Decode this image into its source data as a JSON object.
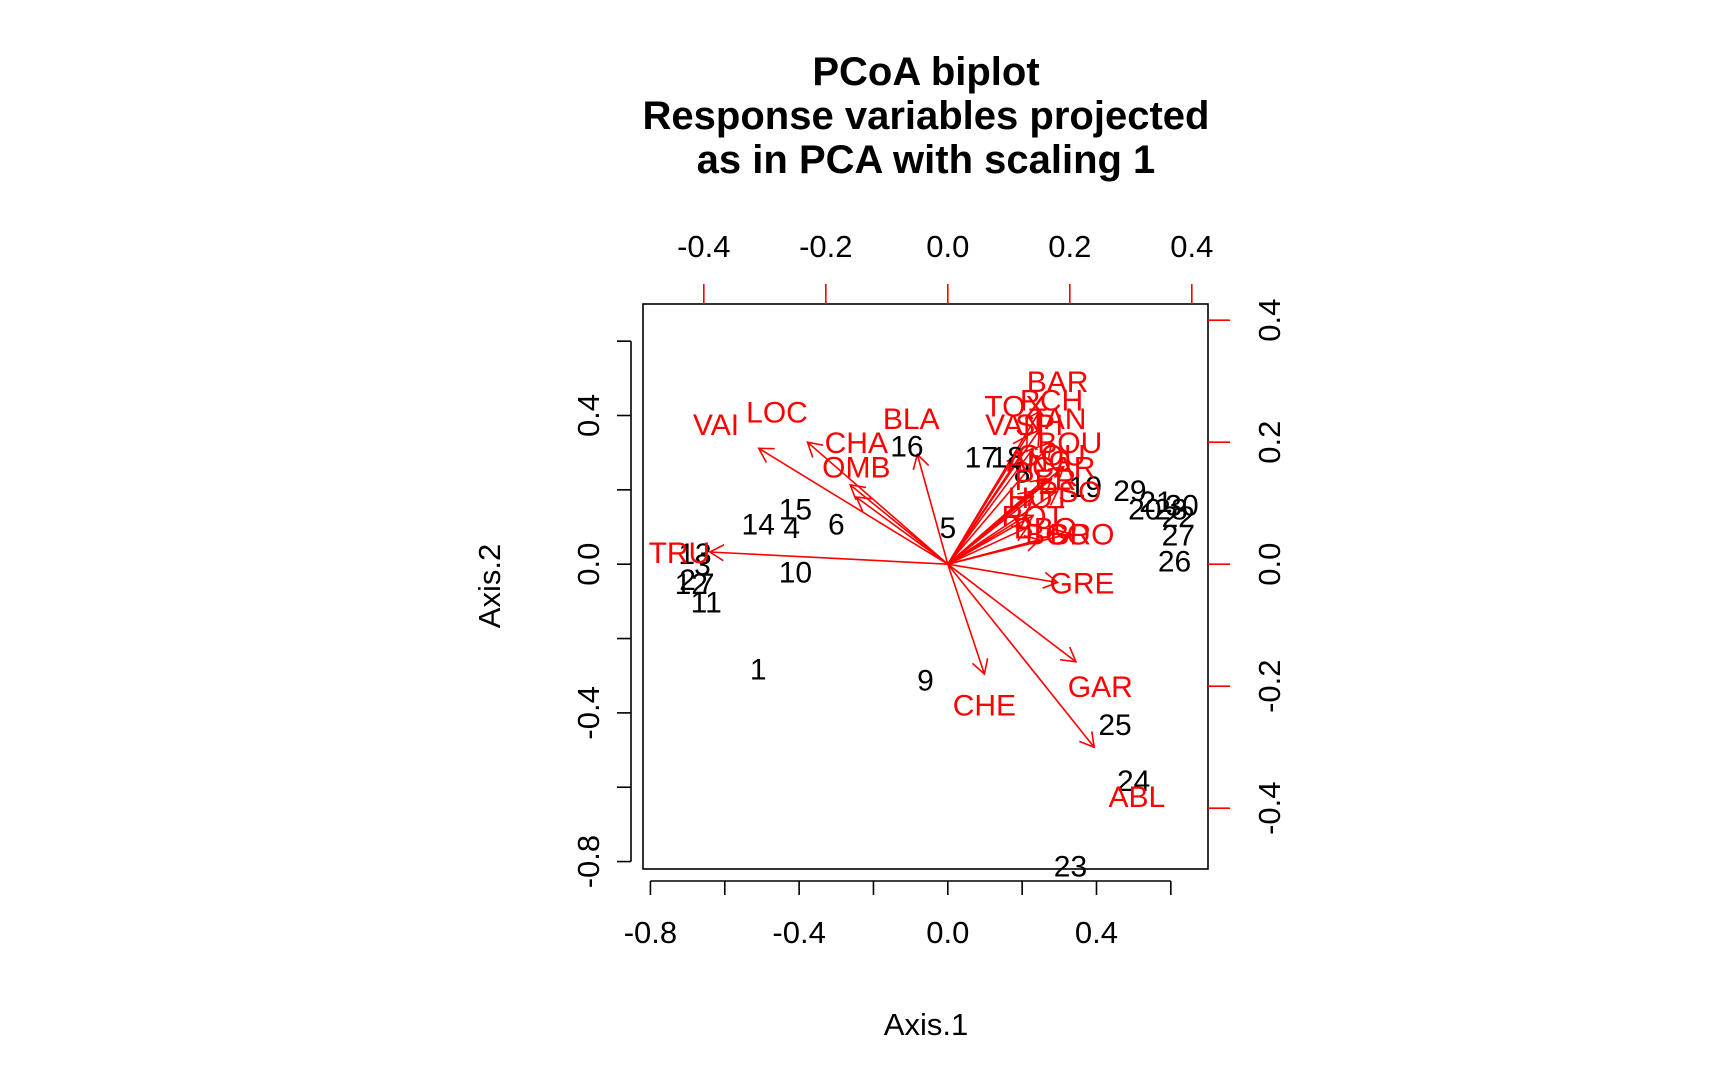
{
  "chart_data": {
    "type": "scatter",
    "title_lines": [
      "PCoA biplot",
      "Response variables projected",
      "as in PCA with scaling 1"
    ],
    "xlabel": "Axis.1",
    "ylabel": "Axis.2",
    "xlim": [
      -0.82,
      0.7
    ],
    "ylim": [
      -0.82,
      0.7
    ],
    "x_ticks": [
      "-0.8",
      "-0.4",
      "0.0",
      "0.4"
    ],
    "x_tick_values": [
      -0.8,
      -0.4,
      0.0,
      0.4
    ],
    "x_minor_ticks": [
      -0.6,
      -0.2,
      0.2,
      0.6
    ],
    "y_ticks": [
      "-0.8",
      "-0.4",
      "0.0",
      "0.4"
    ],
    "y_tick_values": [
      -0.8,
      -0.4,
      0.0,
      0.4
    ],
    "y_minor_ticks": [
      -0.6,
      -0.2,
      0.2,
      0.6
    ],
    "secondary_x_ticks": [
      "-0.4",
      "-0.2",
      "0.0",
      "0.2",
      "0.4"
    ],
    "secondary_x_tick_values": [
      -0.4,
      -0.2,
      0.0,
      0.2,
      0.4
    ],
    "secondary_y_ticks": [
      "-0.4",
      "-0.2",
      "0.0",
      "0.2",
      "0.4"
    ],
    "secondary_y_tick_values": [
      -0.4,
      -0.2,
      0.0,
      0.2,
      0.4
    ],
    "secondary_axis_color": "#ff0000",
    "site_color": "#000000",
    "species_color": "#ff0000",
    "grid": false,
    "sites": [
      {
        "label": "1",
        "x": -0.51,
        "y": -0.28
      },
      {
        "label": "2",
        "x": -0.7,
        "y": -0.04
      },
      {
        "label": "3",
        "x": -0.66,
        "y": 0.0
      },
      {
        "label": "4",
        "x": -0.42,
        "y": 0.1
      },
      {
        "label": "5",
        "x": 0.0,
        "y": 0.1
      },
      {
        "label": "6",
        "x": -0.3,
        "y": 0.11
      },
      {
        "label": "7",
        "x": -0.65,
        "y": -0.05
      },
      {
        "label": "8",
        "x": 0.2,
        "y": 0.25
      },
      {
        "label": "9",
        "x": -0.06,
        "y": -0.31
      },
      {
        "label": "10",
        "x": -0.41,
        "y": -0.02
      },
      {
        "label": "11",
        "x": -0.65,
        "y": -0.1
      },
      {
        "label": "12",
        "x": -0.69,
        "y": -0.05
      },
      {
        "label": "13",
        "x": -0.68,
        "y": 0.03
      },
      {
        "label": "14",
        "x": -0.51,
        "y": 0.11
      },
      {
        "label": "15",
        "x": -0.41,
        "y": 0.15
      },
      {
        "label": "16",
        "x": -0.11,
        "y": 0.32
      },
      {
        "label": "17",
        "x": 0.09,
        "y": 0.29
      },
      {
        "label": "18",
        "x": 0.16,
        "y": 0.29
      },
      {
        "label": "19",
        "x": 0.37,
        "y": 0.21
      },
      {
        "label": "20",
        "x": 0.53,
        "y": 0.15
      },
      {
        "label": "21",
        "x": 0.56,
        "y": 0.17
      },
      {
        "label": "22",
        "x": 0.62,
        "y": 0.13
      },
      {
        "label": "23",
        "x": 0.33,
        "y": -0.81
      },
      {
        "label": "24",
        "x": 0.5,
        "y": -0.58
      },
      {
        "label": "25",
        "x": 0.45,
        "y": -0.43
      },
      {
        "label": "26",
        "x": 0.61,
        "y": 0.01
      },
      {
        "label": "27",
        "x": 0.62,
        "y": 0.08
      },
      {
        "label": "28",
        "x": 0.6,
        "y": 0.15
      },
      {
        "label": "29",
        "x": 0.49,
        "y": 0.2
      },
      {
        "label": "30",
        "x": 0.63,
        "y": 0.16
      }
    ],
    "species": [
      {
        "label": "CHA",
        "x": -0.16,
        "y": 0.13,
        "lx": -0.15,
        "ly": 0.2
      },
      {
        "label": "TRU",
        "x": -0.39,
        "y": 0.02,
        "lx": -0.44,
        "ly": 0.02
      },
      {
        "label": "VAI",
        "x": -0.31,
        "y": 0.19,
        "lx": -0.38,
        "ly": 0.23
      },
      {
        "label": "LOC",
        "x": -0.23,
        "y": 0.2,
        "lx": -0.28,
        "ly": 0.25
      },
      {
        "label": "OMB",
        "x": -0.15,
        "y": 0.11,
        "lx": -0.15,
        "ly": 0.16
      },
      {
        "label": "BLA",
        "x": -0.05,
        "y": 0.18,
        "lx": -0.06,
        "ly": 0.24
      },
      {
        "label": "HOT",
        "x": 0.13,
        "y": 0.08,
        "lx": 0.15,
        "ly": 0.11
      },
      {
        "label": "TOX",
        "x": 0.13,
        "y": 0.21,
        "lx": 0.11,
        "ly": 0.26
      },
      {
        "label": "VAN",
        "x": 0.12,
        "y": 0.18,
        "lx": 0.11,
        "ly": 0.23
      },
      {
        "label": "CHE",
        "x": 0.06,
        "y": -0.18,
        "lx": 0.06,
        "ly": -0.23
      },
      {
        "label": "BAR",
        "x": 0.15,
        "y": 0.25,
        "lx": 0.18,
        "ly": 0.3
      },
      {
        "label": "SPI",
        "x": 0.14,
        "y": 0.19,
        "lx": 0.15,
        "ly": 0.23
      },
      {
        "label": "GOU",
        "x": 0.16,
        "y": 0.14,
        "lx": 0.17,
        "ly": 0.18
      },
      {
        "label": "BRO",
        "x": 0.2,
        "y": 0.05,
        "lx": 0.22,
        "ly": 0.05
      },
      {
        "label": "PER",
        "x": 0.14,
        "y": 0.11,
        "lx": 0.16,
        "ly": 0.14
      },
      {
        "label": "BOU",
        "x": 0.19,
        "y": 0.16,
        "lx": 0.2,
        "ly": 0.2
      },
      {
        "label": "PSO",
        "x": 0.18,
        "y": 0.12,
        "lx": 0.2,
        "ly": 0.12
      },
      {
        "label": "ROT",
        "x": 0.14,
        "y": 0.08,
        "lx": 0.14,
        "ly": 0.08
      },
      {
        "label": "CAR",
        "x": 0.17,
        "y": 0.14,
        "lx": 0.19,
        "ly": 0.16
      },
      {
        "label": "TAN",
        "x": 0.17,
        "y": 0.2,
        "lx": 0.18,
        "ly": 0.24
      },
      {
        "label": "BCO",
        "x": 0.15,
        "y": 0.04,
        "lx": 0.18,
        "ly": 0.05
      },
      {
        "label": "PCH",
        "x": 0.15,
        "y": 0.22,
        "lx": 0.17,
        "ly": 0.27
      },
      {
        "label": "GRE",
        "x": 0.18,
        "y": -0.03,
        "lx": 0.22,
        "ly": -0.03
      },
      {
        "label": "GAR",
        "x": 0.21,
        "y": -0.16,
        "lx": 0.25,
        "ly": -0.2
      },
      {
        "label": "BBO",
        "x": 0.13,
        "y": 0.06,
        "lx": 0.16,
        "ly": 0.06
      },
      {
        "label": "ABL",
        "x": 0.24,
        "y": -0.3,
        "lx": 0.31,
        "ly": -0.38
      },
      {
        "label": "ANG",
        "x": 0.14,
        "y": 0.12,
        "lx": 0.15,
        "ly": 0.17
      }
    ]
  }
}
